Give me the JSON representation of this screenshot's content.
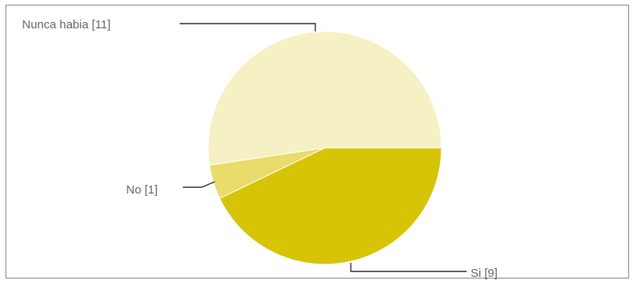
{
  "chart_data": {
    "type": "pie",
    "title": "",
    "slices": [
      {
        "label": "Nunca habia",
        "value": 11,
        "color": "#f6f1c4"
      },
      {
        "label": "No",
        "value": 1,
        "color": "#e9dc6a"
      },
      {
        "label": "Si",
        "value": 9,
        "color": "#d7c407"
      }
    ],
    "slice_labels": [
      "Nunca habia  [11]",
      "No [1]",
      "Si [9]"
    ],
    "legend": "none",
    "label_style": "callout-lines"
  }
}
